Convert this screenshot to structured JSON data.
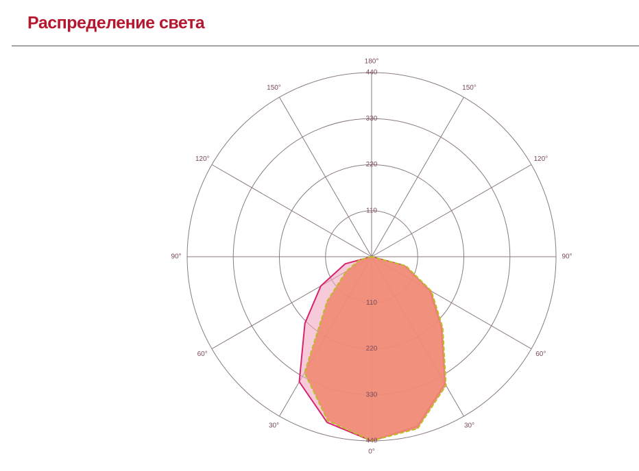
{
  "chart_data": {
    "type": "polar",
    "title": "Распределение света",
    "rlim": [
      0,
      440
    ],
    "rticks": [
      110,
      220,
      330,
      440
    ],
    "angle_ticks": [
      {
        "value": 0,
        "label": "0°"
      },
      {
        "value": 30,
        "label": "30°"
      },
      {
        "value": 60,
        "label": "60°"
      },
      {
        "value": 90,
        "label": "90°"
      },
      {
        "value": 120,
        "label": "120°"
      },
      {
        "value": 150,
        "label": "150°"
      },
      {
        "value": 180,
        "label": "180°"
      },
      {
        "value": -30,
        "label": "30°"
      },
      {
        "value": -60,
        "label": "60°"
      },
      {
        "value": -90,
        "label": "90°"
      },
      {
        "value": -120,
        "label": "120°"
      },
      {
        "value": -150,
        "label": "150°"
      }
    ],
    "x": [
      -90,
      -75,
      -60,
      -45,
      -30,
      -15,
      0,
      15,
      30,
      45,
      60,
      75,
      90
    ],
    "series": [
      {
        "color": "#d6246e",
        "fill": "#f2a6c0",
        "dashed": false,
        "values": [
          0,
          65,
          140,
          225,
          345,
          410,
          440,
          420,
          350,
          235,
          160,
          80,
          0
        ]
      },
      {
        "color": "#b8c020",
        "fill": "#ee8a72",
        "dashed": true,
        "values": [
          0,
          30,
          70,
          150,
          320,
          405,
          440,
          425,
          355,
          240,
          165,
          85,
          0
        ]
      }
    ]
  }
}
